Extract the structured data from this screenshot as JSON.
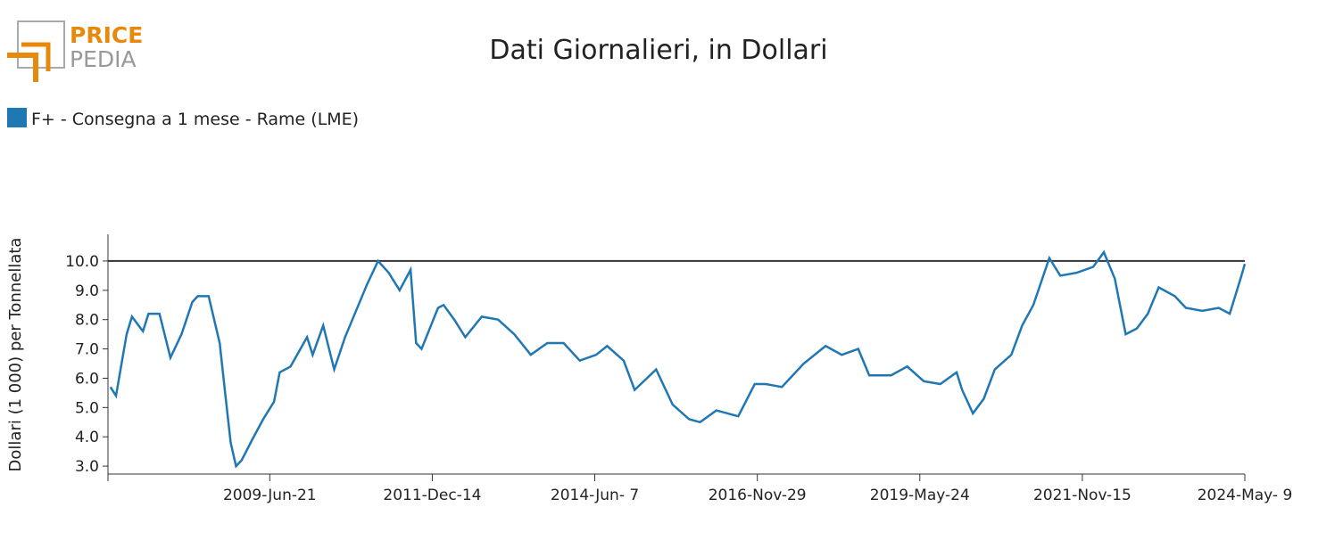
{
  "logo": {
    "line1": "PRICE",
    "line2": "PEDIA"
  },
  "chart_data": {
    "type": "line",
    "title": "Dati Giornalieri, in Dollari",
    "y_label": "Dollari (1 000) per Tonnellata",
    "x": [
      "2007-01-15",
      "2007-02-15",
      "2007-04-15",
      "2007-05-15",
      "2007-07-15",
      "2007-08-15",
      "2007-10-15",
      "2007-12-15",
      "2008-02-15",
      "2008-04-15",
      "2008-05-15",
      "2008-07-15",
      "2008-08-15",
      "2008-09-15",
      "2008-10-15",
      "2008-11-15",
      "2008-12-15",
      "2009-01-15",
      "2009-03-15",
      "2009-05-15",
      "2009-07-15",
      "2009-08-15",
      "2009-10-15",
      "2010-01-15",
      "2010-02-15",
      "2010-04-15",
      "2010-06-15",
      "2010-08-15",
      "2010-10-15",
      "2010-12-15",
      "2011-02-15",
      "2011-04-15",
      "2011-06-15",
      "2011-08-15",
      "2011-09-15",
      "2011-10-15",
      "2012-01-15",
      "2012-02-15",
      "2012-04-15",
      "2012-06-15",
      "2012-09-15",
      "2012-12-15",
      "2013-03-15",
      "2013-06-15",
      "2013-09-15",
      "2013-12-15",
      "2014-03-15",
      "2014-06-15",
      "2014-08-15",
      "2014-11-15",
      "2015-01-15",
      "2015-05-15",
      "2015-08-15",
      "2015-11-15",
      "2016-01-15",
      "2016-04-15",
      "2016-08-15",
      "2016-11-15",
      "2017-01-15",
      "2017-04-15",
      "2017-08-15",
      "2017-12-15",
      "2018-03-15",
      "2018-06-15",
      "2018-08-15",
      "2018-12-15",
      "2019-03-15",
      "2019-06-15",
      "2019-09-15",
      "2019-12-15",
      "2020-01-15",
      "2020-03-15",
      "2020-05-15",
      "2020-07-15",
      "2020-10-15",
      "2020-12-15",
      "2021-02-15",
      "2021-05-15",
      "2021-07-15",
      "2021-10-15",
      "2022-01-15",
      "2022-03-15",
      "2022-05-15",
      "2022-07-15",
      "2022-09-15",
      "2022-11-15",
      "2023-01-15",
      "2023-04-15",
      "2023-06-15",
      "2023-09-15",
      "2023-12-15",
      "2024-02-15",
      "2024-04-15",
      "2024-05-09"
    ],
    "series": [
      {
        "name": "F+ - Consegna a 1 mese - Rame (LME)",
        "color": "#1f77b4",
        "values": [
          5.7,
          5.4,
          7.5,
          8.1,
          7.6,
          8.2,
          8.2,
          6.7,
          7.5,
          8.6,
          8.8,
          8.8,
          8.0,
          7.2,
          5.5,
          3.8,
          3.0,
          3.2,
          3.9,
          4.6,
          5.2,
          6.2,
          6.4,
          7.4,
          6.8,
          7.8,
          6.3,
          7.4,
          8.3,
          9.2,
          10.0,
          9.6,
          9.0,
          9.7,
          7.2,
          7.0,
          8.4,
          8.5,
          8.0,
          7.4,
          8.1,
          8.0,
          7.5,
          6.8,
          7.2,
          7.2,
          6.6,
          6.8,
          7.1,
          6.6,
          5.6,
          6.3,
          5.1,
          4.6,
          4.5,
          4.9,
          4.7,
          5.8,
          5.8,
          5.7,
          6.5,
          7.1,
          6.8,
          7.0,
          6.1,
          6.1,
          6.4,
          5.9,
          5.8,
          6.2,
          5.6,
          4.8,
          5.3,
          6.3,
          6.8,
          7.8,
          8.5,
          10.1,
          9.5,
          9.6,
          9.8,
          10.3,
          9.4,
          7.5,
          7.7,
          8.2,
          9.1,
          8.8,
          8.4,
          8.3,
          8.4,
          8.2,
          9.4,
          9.9
        ]
      }
    ],
    "xlim": [
      "2007-01-01",
      "2024-05-09"
    ],
    "xticks": [
      {
        "value": "2009-06-21",
        "label": "2009-Jun-21"
      },
      {
        "value": "2011-12-14",
        "label": "2011-Dec-14"
      },
      {
        "value": "2014-06-07",
        "label": "2014-Jun- 7"
      },
      {
        "value": "2016-11-29",
        "label": "2016-Nov-29"
      },
      {
        "value": "2019-05-24",
        "label": "2019-May-24"
      },
      {
        "value": "2021-11-15",
        "label": "2021-Nov-15"
      },
      {
        "value": "2024-05-09",
        "label": "2024-May- 9"
      }
    ],
    "ylim": [
      2.73,
      10.91
    ],
    "yticks": [
      {
        "value": 3,
        "label": "3.0"
      },
      {
        "value": 4,
        "label": "4.0"
      },
      {
        "value": 5,
        "label": "5.0"
      },
      {
        "value": 6,
        "label": "6.0"
      },
      {
        "value": 7,
        "label": "7.0"
      },
      {
        "value": 8,
        "label": "8.0"
      },
      {
        "value": 9,
        "label": "9.0"
      },
      {
        "value": 10,
        "label": "10.0"
      }
    ],
    "reference_line": 10
  }
}
